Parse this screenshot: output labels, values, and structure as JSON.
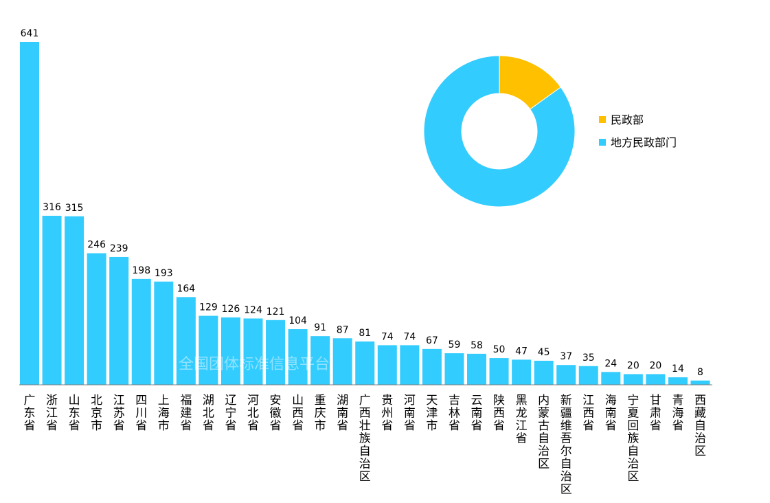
{
  "chart_data": [
    {
      "type": "bar",
      "title": "",
      "xlabel": "",
      "ylabel": "",
      "ylim": [
        0,
        641
      ],
      "grid": false,
      "bar_color": "#33ccff",
      "categories": [
        "广东省",
        "浙江省",
        "山东省",
        "北京市",
        "江苏省",
        "四川省",
        "上海市",
        "福建省",
        "湖北省",
        "辽宁省",
        "河北省",
        "安徽省",
        "山西省",
        "重庆市",
        "湖南省",
        "广西壮族自治区",
        "贵州省",
        "河南省",
        "天津市",
        "吉林省",
        "云南省",
        "陕西省",
        "黑龙江省",
        "内蒙古自治区",
        "新疆维吾尔自治区",
        "江西省",
        "海南省",
        "宁夏回族自治区",
        "甘肃省",
        "青海省",
        "西藏自治区"
      ],
      "values": [
        641,
        316,
        315,
        246,
        239,
        198,
        193,
        164,
        129,
        126,
        124,
        121,
        104,
        91,
        87,
        81,
        74,
        74,
        67,
        59,
        58,
        50,
        47,
        45,
        37,
        35,
        24,
        20,
        20,
        14,
        8
      ],
      "value_labels": [
        "641",
        "316",
        "315",
        "246",
        "239",
        "198",
        "193",
        "164",
        "129",
        "126",
        "124",
        "121",
        "104",
        "91",
        "87",
        "81",
        "74",
        "74",
        "67",
        "59",
        "58",
        "50",
        "47",
        "45",
        "37",
        "35",
        "24",
        "20",
        "20",
        "14",
        "8"
      ]
    },
    {
      "type": "pie",
      "style": "donut",
      "slices": [
        {
          "name": "民政部",
          "fraction": 0.151,
          "color": "#ffc000"
        },
        {
          "name": "地方民政部门",
          "fraction": 0.849,
          "color": "#33ccff"
        }
      ],
      "legend_position": "right"
    }
  ],
  "watermark": "全国团体标准信息平台"
}
